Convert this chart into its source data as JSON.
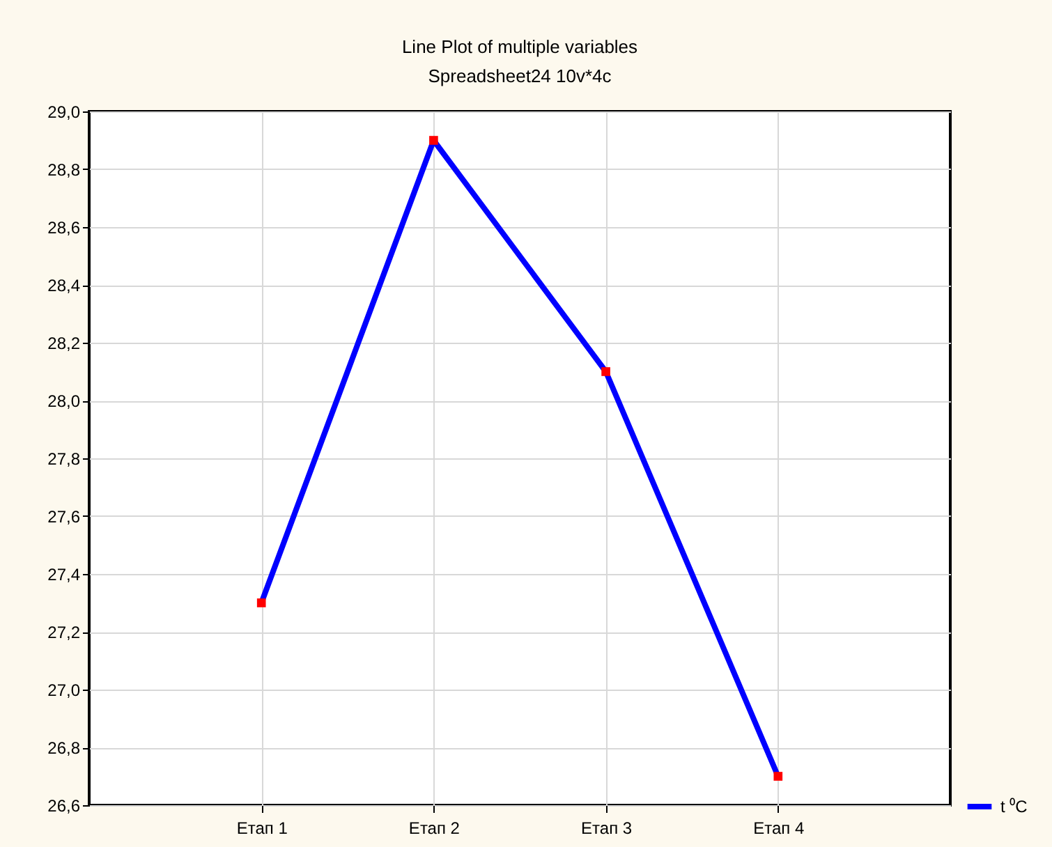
{
  "chart_data": {
    "type": "line",
    "title": "Line Plot of multiple variables",
    "subtitle": "Spreadsheet24 10v*4c",
    "categories": [
      "Етап 1",
      "Етап 2",
      "Етап 3",
      "Етап 4"
    ],
    "series": [
      {
        "name": "t ⁰C",
        "color": "#0000ff",
        "colors": [
          "#ff0000",
          "#ff0000",
          "#ff0000",
          "#ff0000"
        ],
        "values": [
          27.3,
          28.9,
          28.1,
          26.7
        ]
      }
    ],
    "ylim": [
      26.6,
      29.0
    ],
    "yticks": [
      {
        "value": 26.6,
        "label": "26,6"
      },
      {
        "value": 26.8,
        "label": "26,8"
      },
      {
        "value": 27.0,
        "label": "27,0"
      },
      {
        "value": 27.2,
        "label": "27,2"
      },
      {
        "value": 27.4,
        "label": "27,4"
      },
      {
        "value": 27.6,
        "label": "27,6"
      },
      {
        "value": 27.8,
        "label": "27,8"
      },
      {
        "value": 28.0,
        "label": "28,0"
      },
      {
        "value": 28.2,
        "label": "28,2"
      },
      {
        "value": 28.4,
        "label": "28,4"
      },
      {
        "value": 28.6,
        "label": "28,6"
      },
      {
        "value": 28.8,
        "label": "28,8"
      },
      {
        "value": 29.0,
        "label": "29,0"
      }
    ],
    "grid": true,
    "legend": "bottom right",
    "marker": "square",
    "line_style": "solid"
  }
}
